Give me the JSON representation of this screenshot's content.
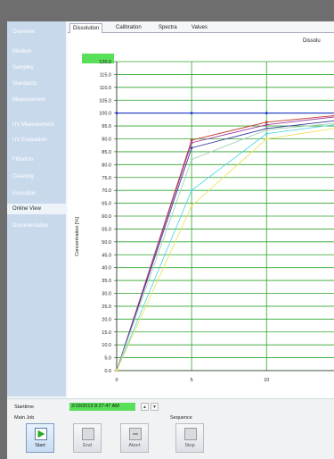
{
  "sidebar": {
    "items": [
      {
        "label": "Overview"
      },
      {
        "label": "Medium"
      },
      {
        "label": "Samples"
      },
      {
        "label": "Standards"
      },
      {
        "label": "Measurement"
      },
      {
        "label": "UV Measurement"
      },
      {
        "label": "UV Evaluation"
      },
      {
        "label": "Filtration"
      },
      {
        "label": "Cleaning"
      },
      {
        "label": "Execution"
      },
      {
        "label": "Online View"
      },
      {
        "label": "Documentation"
      }
    ],
    "active": "Online View"
  },
  "tabs": [
    {
      "label": "Dissolution"
    },
    {
      "label": "Calibration"
    },
    {
      "label": "Spectra"
    },
    {
      "label": "Values"
    }
  ],
  "chart": {
    "title_visible": "Dissolu",
    "y_tick_labels": [
      "0.0",
      "5.0",
      "10.0",
      "15.0",
      "20.0",
      "25.0",
      "30.0",
      "35.0",
      "40.0",
      "45.0",
      "50.0",
      "55.0",
      "60.0",
      "65.0",
      "70.0",
      "75.0",
      "80.0",
      "85.0",
      "90.0",
      "95.0",
      "100.0",
      "105.0",
      "110.0",
      "115.0",
      "120.0"
    ],
    "x_tick_labels": [
      "0",
      "5",
      "10"
    ]
  },
  "chart_data": {
    "type": "line",
    "title": "Dissolu",
    "ylabel": "Concentration [%]",
    "xlabel": "",
    "ylim": [
      0,
      120
    ],
    "xlim": [
      0,
      14.5
    ],
    "grid": true,
    "series": [
      {
        "color": "#1a2bd8",
        "x": [
          0,
          5,
          10,
          14.5
        ],
        "y": [
          100,
          100,
          100,
          100
        ]
      },
      {
        "color": "#c0392b",
        "x": [
          0,
          5,
          10,
          14.5
        ],
        "y": [
          0,
          89.5,
          96.5,
          99
        ]
      },
      {
        "color": "#a040a0",
        "x": [
          0,
          5,
          10,
          14.5
        ],
        "y": [
          0,
          88.5,
          95.5,
          98.5
        ]
      },
      {
        "color": "#3a3aa0",
        "x": [
          0,
          5,
          10,
          14.5
        ],
        "y": [
          0,
          86.5,
          94,
          97
        ]
      },
      {
        "color": "#a8d0b8",
        "x": [
          0,
          5,
          10,
          14.5
        ],
        "y": [
          0,
          82,
          93.5,
          96
        ]
      },
      {
        "color": "#58d8e0",
        "x": [
          0,
          5,
          10,
          14.5
        ],
        "y": [
          0,
          70,
          92,
          95.5
        ]
      },
      {
        "color": "#f0e060",
        "x": [
          0,
          5,
          10,
          14.5
        ],
        "y": [
          0,
          64,
          90,
          94
        ]
      }
    ]
  },
  "bottom": {
    "starttime_label": "Starttime",
    "starttime_value": "2/19/2013 8:27:47 AM",
    "spin_up": "▲",
    "spin_down": "▼",
    "main_job_label": "Main Job",
    "sequence_label": "Sequence",
    "buttons": {
      "start": "Start",
      "end": "End",
      "abort": "Abort",
      "stop": "Stop"
    }
  },
  "colors": {
    "sidebar": "#c9d9ec",
    "grid": "#2fa52f",
    "highlight_green": "#58e058",
    "frame": "#6e6e6e"
  }
}
